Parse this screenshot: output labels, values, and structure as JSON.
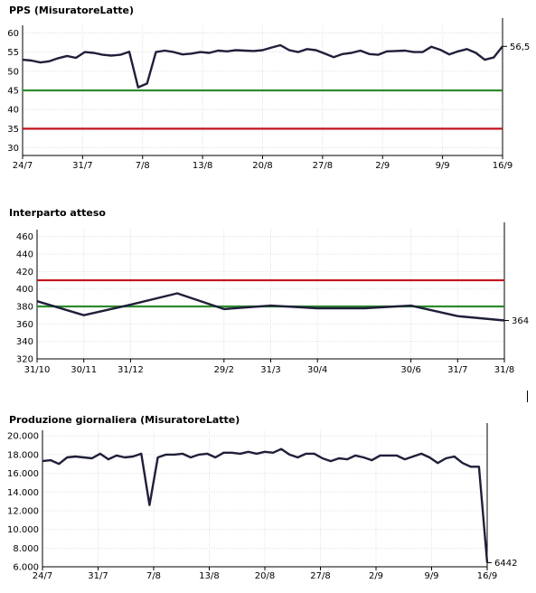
{
  "chart_data": [
    {
      "type": "line",
      "title": "PPS (MisuratoreLatte)",
      "x_labels": [
        "24/7",
        "31/7",
        "7/8",
        "13/8",
        "20/8",
        "27/8",
        "2/9",
        "9/9",
        "16/9"
      ],
      "y_ticks": [
        "30",
        "35",
        "40",
        "45",
        "50",
        "55",
        "60"
      ],
      "ylim": [
        28,
        62
      ],
      "last_value_label": "56,5",
      "grid": true,
      "reference_lines": [
        {
          "value": 45,
          "color": "#2e8b2e"
        },
        {
          "value": 35,
          "color": "#c0141c"
        }
      ],
      "series": [
        {
          "color": "#1f1f3a",
          "points": [
            [
              0,
              53
            ],
            [
              1,
              52.8
            ],
            [
              2,
              52.3
            ],
            [
              3,
              52.6
            ],
            [
              4,
              53.4
            ],
            [
              5,
              54
            ],
            [
              6,
              53.5
            ],
            [
              7,
              55
            ],
            [
              8,
              54.8
            ],
            [
              9,
              54.3
            ],
            [
              10,
              54.1
            ],
            [
              11,
              54.3
            ],
            [
              12,
              55.1
            ],
            [
              13,
              45.8
            ],
            [
              14,
              46.8
            ],
            [
              15,
              55
            ],
            [
              16,
              55.4
            ],
            [
              17,
              55
            ],
            [
              18,
              54.4
            ],
            [
              19,
              54.6
            ],
            [
              20,
              55
            ],
            [
              21,
              54.8
            ],
            [
              22,
              55.4
            ],
            [
              23,
              55.2
            ],
            [
              24,
              55.5
            ],
            [
              25,
              55.4
            ],
            [
              26,
              55.3
            ],
            [
              27,
              55.5
            ],
            [
              28,
              56.2
            ],
            [
              29,
              56.8
            ],
            [
              30,
              55.5
            ],
            [
              31,
              55
            ],
            [
              32,
              55.8
            ],
            [
              33,
              55.5
            ],
            [
              34,
              54.6
            ],
            [
              35,
              53.7
            ],
            [
              36,
              54.5
            ],
            [
              37,
              54.8
            ],
            [
              38,
              55.4
            ],
            [
              39,
              54.5
            ],
            [
              40,
              54.3
            ],
            [
              41,
              55.2
            ],
            [
              42,
              55.3
            ],
            [
              43,
              55.4
            ],
            [
              44,
              55
            ],
            [
              45,
              55
            ],
            [
              46,
              56.4
            ],
            [
              47,
              55.6
            ],
            [
              48,
              54.4
            ],
            [
              49,
              55.2
            ],
            [
              50,
              55.8
            ],
            [
              51,
              54.8
            ],
            [
              52,
              53
            ],
            [
              53,
              53.6
            ],
            [
              54,
              56.5
            ]
          ]
        }
      ],
      "x_count": 54
    },
    {
      "type": "line",
      "title": "Interparto atteso",
      "x_labels": [
        "31/10",
        "30/11",
        "31/12",
        "29/2",
        "31/3",
        "30/4",
        "30/6",
        "31/7",
        "31/8"
      ],
      "x_label_positions": [
        0,
        1,
        2,
        4,
        5,
        6,
        8,
        9,
        10
      ],
      "y_ticks": [
        "320",
        "340",
        "360",
        "380",
        "400",
        "420",
        "440",
        "460"
      ],
      "ylim": [
        320,
        468
      ],
      "last_value_label": "364",
      "grid": true,
      "reference_lines": [
        {
          "value": 410,
          "color": "#c0141c"
        },
        {
          "value": 380,
          "color": "#2e8b2e"
        }
      ],
      "series": [
        {
          "color": "#1f1f3a",
          "points": [
            [
              0,
              386
            ],
            [
              1,
              370
            ],
            [
              2,
              382
            ],
            [
              3,
              395
            ],
            [
              4,
              377
            ],
            [
              5,
              381
            ],
            [
              6,
              378
            ],
            [
              7,
              378
            ],
            [
              8,
              381
            ],
            [
              9,
              369
            ],
            [
              10,
              364
            ]
          ]
        }
      ],
      "x_count": 10
    },
    {
      "type": "line",
      "title": "Produzione giornaliera (MisuratoreLatte)",
      "x_labels": [
        "24/7",
        "31/7",
        "7/8",
        "13/8",
        "20/8",
        "27/8",
        "2/9",
        "9/9",
        "16/9"
      ],
      "y_ticks": [
        "6.000",
        "8.000",
        "10.000",
        "12.000",
        "14.000",
        "16.000",
        "18.000",
        "20.000"
      ],
      "ylim": [
        6000,
        20600
      ],
      "last_value_label": "6442",
      "grid": true,
      "reference_lines": [],
      "series": [
        {
          "color": "#1f1f3a",
          "points": [
            [
              0,
              17300
            ],
            [
              1,
              17400
            ],
            [
              2,
              17000
            ],
            [
              3,
              17700
            ],
            [
              4,
              17800
            ],
            [
              5,
              17700
            ],
            [
              6,
              17600
            ],
            [
              7,
              18100
            ],
            [
              8,
              17500
            ],
            [
              9,
              17900
            ],
            [
              10,
              17700
            ],
            [
              11,
              17800
            ],
            [
              12,
              18100
            ],
            [
              13,
              12600
            ],
            [
              14,
              17700
            ],
            [
              15,
              18000
            ],
            [
              16,
              18000
            ],
            [
              17,
              18100
            ],
            [
              18,
              17700
            ],
            [
              19,
              18000
            ],
            [
              20,
              18100
            ],
            [
              21,
              17700
            ],
            [
              22,
              18200
            ],
            [
              23,
              18200
            ],
            [
              24,
              18100
            ],
            [
              25,
              18300
            ],
            [
              26,
              18100
            ],
            [
              27,
              18300
            ],
            [
              28,
              18200
            ],
            [
              29,
              18600
            ],
            [
              30,
              18000
            ],
            [
              31,
              17700
            ],
            [
              32,
              18100
            ],
            [
              33,
              18100
            ],
            [
              34,
              17600
            ],
            [
              35,
              17300
            ],
            [
              36,
              17600
            ],
            [
              37,
              17500
            ],
            [
              38,
              17900
            ],
            [
              39,
              17700
            ],
            [
              40,
              17400
            ],
            [
              41,
              17900
            ],
            [
              42,
              17900
            ],
            [
              43,
              17900
            ],
            [
              44,
              17500
            ],
            [
              45,
              17800
            ],
            [
              46,
              18100
            ],
            [
              47,
              17700
            ],
            [
              48,
              17100
            ],
            [
              49,
              17600
            ],
            [
              50,
              17800
            ],
            [
              51,
              17100
            ],
            [
              52,
              16700
            ],
            [
              53,
              16700
            ],
            [
              54,
              6442
            ]
          ]
        }
      ],
      "x_count": 54
    }
  ]
}
